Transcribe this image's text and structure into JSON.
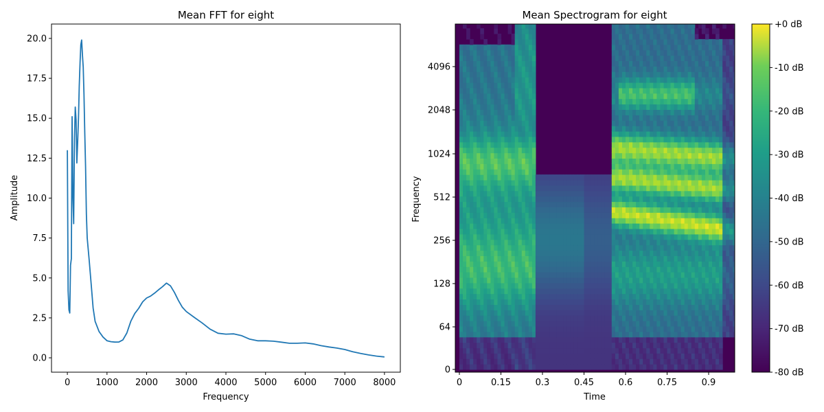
{
  "chart_data": [
    {
      "type": "line",
      "title": "Mean FFT for eight",
      "xlabel": "Frequency",
      "ylabel": "Amplitude",
      "xlim": [
        -400,
        8400
      ],
      "ylim": [
        -0.9,
        20.9
      ],
      "xticks": [
        0,
        1000,
        2000,
        3000,
        4000,
        5000,
        6000,
        7000,
        8000
      ],
      "yticks": [
        0.0,
        2.5,
        5.0,
        7.5,
        10.0,
        12.5,
        15.0,
        17.5,
        20.0
      ],
      "ytick_labels": [
        "0.0",
        "2.5",
        "5.0",
        "7.5",
        "10.0",
        "12.5",
        "15.0",
        "17.5",
        "20.0"
      ],
      "line_color": "#1f77b4",
      "series": [
        {
          "x": [
            0,
            20,
            40,
            60,
            80,
            100,
            120,
            140,
            160,
            180,
            200,
            220,
            240,
            260,
            280,
            300,
            320,
            340,
            360,
            380,
            400,
            420,
            440,
            460,
            480,
            500,
            550,
            600,
            650,
            700,
            800,
            900,
            1000,
            1100,
            1200,
            1300,
            1400,
            1500,
            1600,
            1700,
            1800,
            1900,
            2000,
            2100,
            2200,
            2300,
            2400,
            2500,
            2600,
            2700,
            2800,
            2900,
            3000,
            3200,
            3400,
            3600,
            3800,
            4000,
            4200,
            4400,
            4600,
            4800,
            5000,
            5200,
            5400,
            5600,
            5800,
            6000,
            6200,
            6400,
            6600,
            6800,
            7000,
            7200,
            7400,
            7600,
            7800,
            8000
          ],
          "y": [
            13.0,
            4.2,
            3.0,
            2.8,
            5.8,
            6.2,
            15.1,
            10.0,
            8.4,
            13.8,
            15.7,
            14.9,
            12.2,
            13.5,
            15.0,
            17.0,
            18.5,
            19.6,
            19.9,
            19.0,
            18.2,
            16.5,
            14.0,
            12.0,
            9.0,
            7.5,
            6.0,
            4.5,
            3.0,
            2.2,
            1.6,
            1.3,
            1.1,
            1.05,
            1.02,
            1.0,
            1.1,
            1.5,
            2.2,
            2.7,
            3.1,
            3.6,
            3.9,
            4.0,
            4.1,
            4.2,
            4.3,
            4.5,
            4.4,
            4.1,
            3.7,
            3.3,
            3.0,
            2.5,
            2.1,
            1.8,
            1.6,
            1.5,
            1.45,
            1.35,
            1.2,
            1.1,
            1.05,
            1.0,
            0.98,
            0.95,
            0.92,
            0.9,
            0.85,
            0.78,
            0.7,
            0.6,
            0.5,
            0.38,
            0.28,
            0.18,
            0.1,
            0.05
          ]
        }
      ]
    },
    {
      "type": "heatmap",
      "title": "Mean Spectrogram for eight",
      "xlabel": "Time",
      "ylabel": "Frequency",
      "xlim": [
        0,
        1.0
      ],
      "x_ticks": [
        "0",
        "0.15",
        "0.3",
        "0.45",
        "0.6",
        "0.75",
        "0.9"
      ],
      "x_tick_values": [
        0,
        0.15,
        0.3,
        0.45,
        0.6,
        0.75,
        0.9
      ],
      "y_scale": "symlog",
      "y_ticks": [
        "0",
        "64",
        "128",
        "256",
        "512",
        "1024",
        "2048",
        "4096"
      ],
      "y_tick_values": [
        0,
        64,
        128,
        256,
        512,
        1024,
        2048,
        4096
      ],
      "colorbar": {
        "range_db": [
          -80,
          0
        ],
        "ticks": [
          "+0 dB",
          "-10 dB",
          "-20 dB",
          "-30 dB",
          "-40 dB",
          "-50 dB",
          "-60 dB",
          "-70 dB",
          "-80 dB"
        ],
        "tick_values": [
          0,
          -10,
          -20,
          -30,
          -40,
          -50,
          -60,
          -70,
          -80
        ],
        "colormap": "viridis"
      }
    }
  ]
}
